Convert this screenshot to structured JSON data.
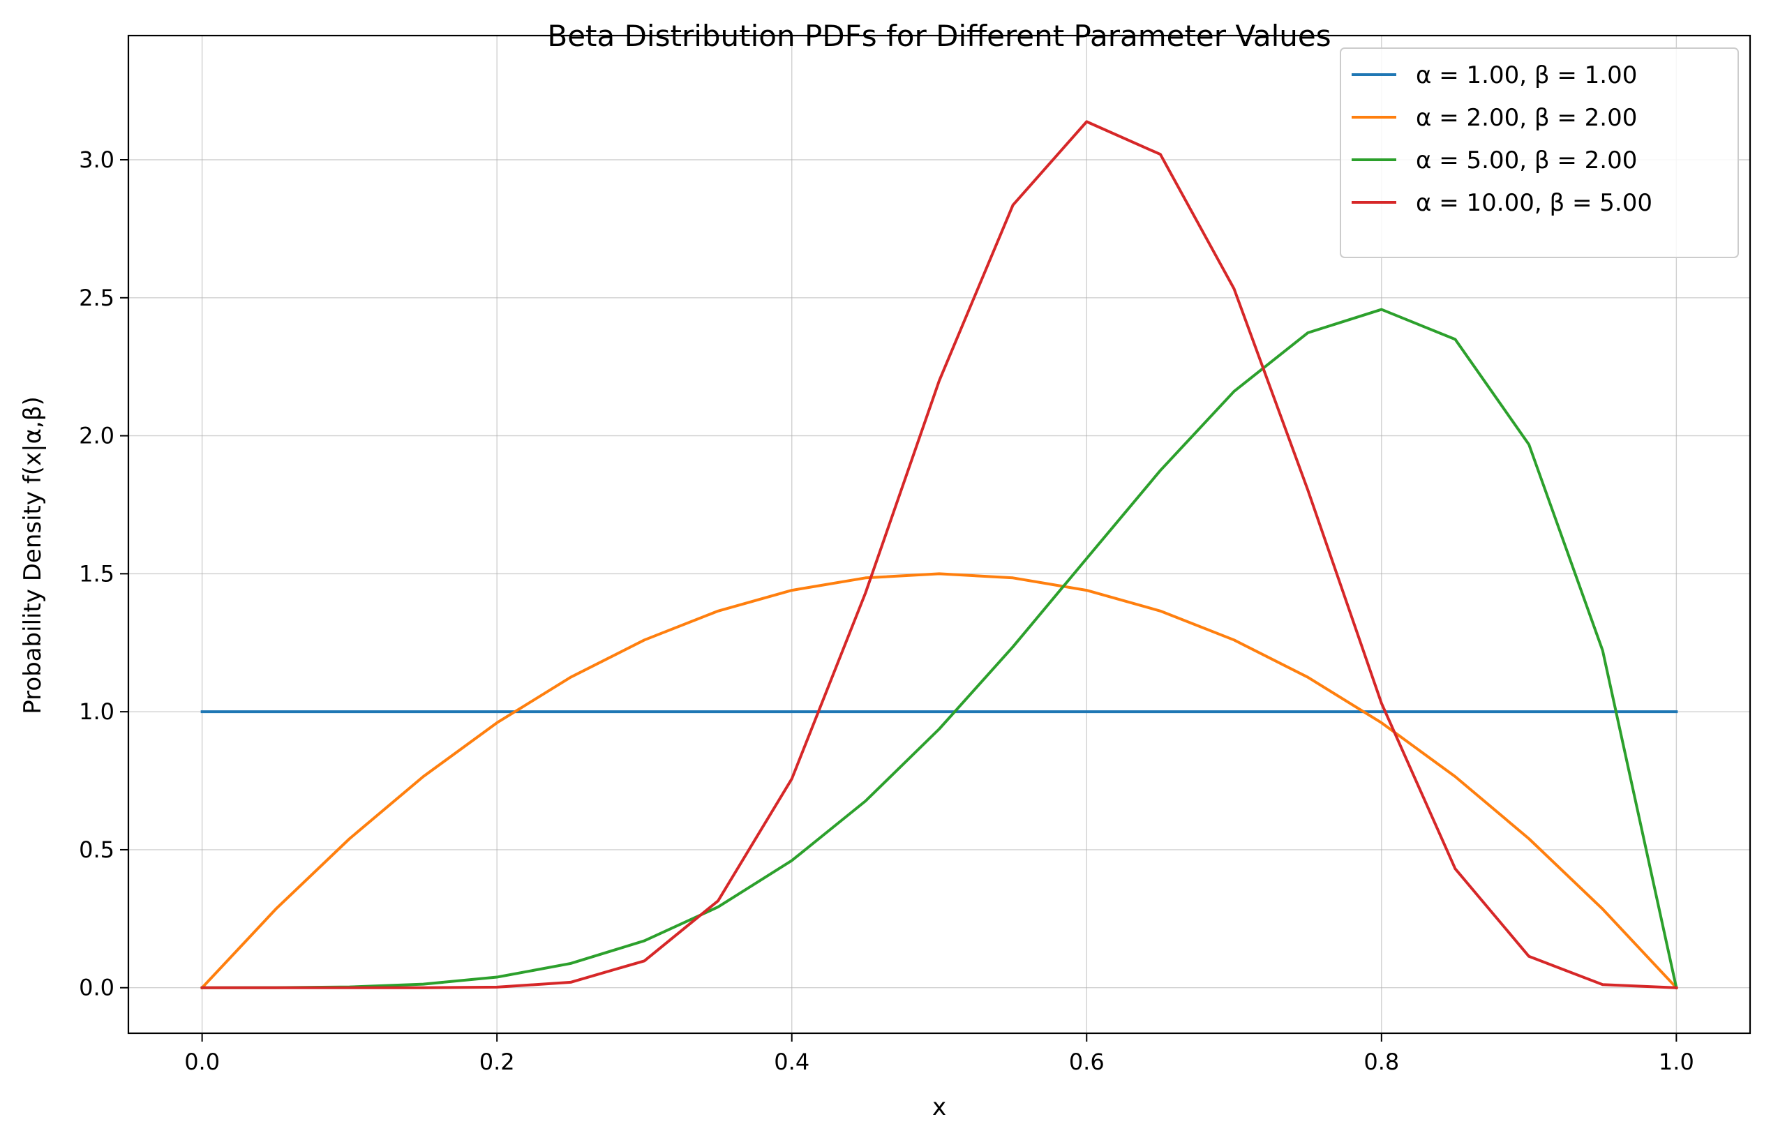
{
  "chart_data": {
    "type": "line",
    "title": "Beta Distribution PDFs for Different Parameter Values",
    "xlabel": "x",
    "ylabel": "Probability Density f(x|α,β)",
    "xlim": [
      -0.05,
      1.05
    ],
    "ylim": [
      -0.165,
      3.45
    ],
    "x_ticks": [
      0.0,
      0.2,
      0.4,
      0.6,
      0.8,
      1.0
    ],
    "x_tick_labels": [
      "0.0",
      "0.2",
      "0.4",
      "0.6",
      "0.8",
      "1.0"
    ],
    "y_ticks": [
      0.0,
      0.5,
      1.0,
      1.5,
      2.0,
      2.5,
      3.0
    ],
    "y_tick_labels": [
      "0.0",
      "0.5",
      "1.0",
      "1.5",
      "2.0",
      "2.5",
      "3.0"
    ],
    "grid": true,
    "legend_position": "top-right",
    "x": [
      0.0,
      0.05,
      0.1,
      0.15,
      0.2,
      0.25,
      0.3,
      0.35,
      0.4,
      0.45,
      0.5,
      0.55,
      0.6,
      0.65,
      0.7,
      0.75,
      0.8,
      0.85,
      0.9,
      0.95,
      1.0
    ],
    "series": [
      {
        "name": "α = 1.00, β = 1.00",
        "color": "#1f77b4",
        "values": [
          1.0,
          1.0,
          1.0,
          1.0,
          1.0,
          1.0,
          1.0,
          1.0,
          1.0,
          1.0,
          1.0,
          1.0,
          1.0,
          1.0,
          1.0,
          1.0,
          1.0,
          1.0,
          1.0,
          1.0,
          1.0
        ]
      },
      {
        "name": "α = 2.00, β = 2.00",
        "color": "#ff7f0e",
        "values": [
          0.0,
          0.285,
          0.54,
          0.765,
          0.96,
          1.125,
          1.26,
          1.365,
          1.44,
          1.485,
          1.5,
          1.485,
          1.44,
          1.365,
          1.26,
          1.125,
          0.96,
          0.765,
          0.54,
          0.285,
          0.0
        ]
      },
      {
        "name": "α = 5.00, β = 2.00",
        "color": "#2ca02c",
        "values": [
          0.0,
          0.0002,
          0.0027,
          0.0129,
          0.0384,
          0.0879,
          0.1701,
          0.2926,
          0.4608,
          0.6765,
          0.9375,
          1.2354,
          1.5552,
          1.8743,
          2.1609,
          2.373,
          2.4576,
          2.3493,
          1.9683,
          1.2217,
          0.0
        ]
      },
      {
        "name": "α = 10.00, β = 5.00",
        "color": "#d62728",
        "values": [
          0.0,
          0.0,
          0.0,
          0.0001,
          0.0022,
          0.0198,
          0.0972,
          0.3149,
          0.7569,
          1.4306,
          2.1995,
          2.8359,
          3.1381,
          3.0197,
          2.5323,
          1.8039,
          1.0306,
          0.4311,
          0.1136,
          0.0113,
          0.0
        ]
      }
    ]
  }
}
